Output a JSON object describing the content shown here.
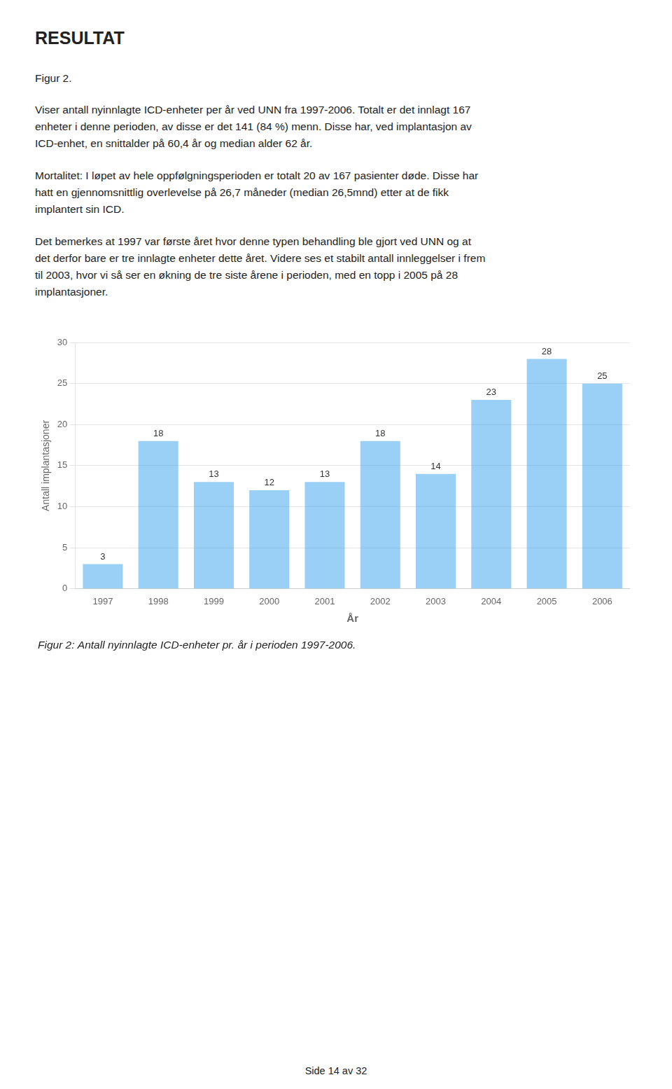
{
  "heading": "RESULTAT",
  "figure_label": "Figur 2.",
  "paragraphs": [
    [
      "Viser antall nyinnlagte ICD-enheter per år ved UNN fra 1997-2006. Totalt er det innlagt 167",
      "enheter i denne perioden, av disse er det 141 (84 %) menn. Disse har, ved implantasjon av",
      "ICD-enhet, en snittalder på 60,4 år og median alder 62 år."
    ],
    [
      "Mortalitet: I løpet av hele oppfølgningsperioden er totalt 20 av 167 pasienter døde. Disse har",
      "hatt en gjennomsnittlig overlevelse på 26,7 måneder (median 26,5mnd) etter at de fikk",
      "implantert sin ICD."
    ],
    [
      "Det bemerkes at 1997 var første året hvor denne typen behandling ble gjort ved UNN og at",
      "det derfor bare er tre innlagte enheter dette året. Videre ses et stabilt antall innleggelser i frem",
      "til 2003, hvor vi så ser en økning de tre siste årene i perioden, med en topp i 2005 på 28",
      "implantasjoner."
    ]
  ],
  "footer": "Side 14 av 32",
  "chart_data": {
    "type": "bar",
    "title": "Figur 2: Antall nyinnlagte ICD-enheter pr. år i perioden 1997-2006.",
    "xlabel": "År",
    "ylabel": "Antall implantasjoner",
    "categories": [
      "1997",
      "1998",
      "1999",
      "2000",
      "2001",
      "2002",
      "2003",
      "2004",
      "2005",
      "2006"
    ],
    "values": [
      3,
      18,
      13,
      12,
      13,
      18,
      14,
      23,
      28,
      25
    ],
    "ylim": [
      0,
      30
    ],
    "yticks": [
      0,
      5,
      10,
      15,
      20,
      25,
      30
    ],
    "grid": true,
    "data_labels": true
  }
}
